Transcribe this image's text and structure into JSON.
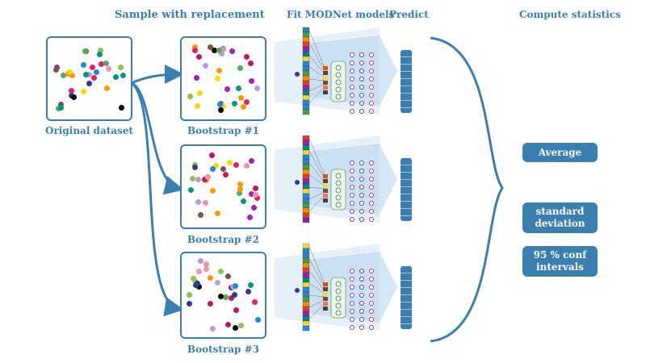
{
  "headers": {
    "sample": "Sample with replacement",
    "fit": "Fit MODNet models",
    "predict": "Predict",
    "compute": "Compute statistics"
  },
  "labels": {
    "original": "Original dataset",
    "bootstraps": [
      "Bootstrap #1",
      "Bootstrap #2",
      "Bootstrap #3"
    ]
  },
  "stats": {
    "average": "Average",
    "stdev_line1": "standard",
    "stdev_line2": "deviation",
    "ci_line1": "95 % conf",
    "ci_line2": "intervals"
  },
  "colors": {
    "accent": "#3a7fb0",
    "dots": [
      "#c2185b",
      "#2e3b8f",
      "#e91e63",
      "#009688",
      "#f48fb1",
      "#9c27b0",
      "#8bc34a",
      "#ff9800",
      "#795548",
      "#ffd600",
      "#1e88e5",
      "#b39ddb",
      "#000000",
      "#4caf50"
    ]
  }
}
